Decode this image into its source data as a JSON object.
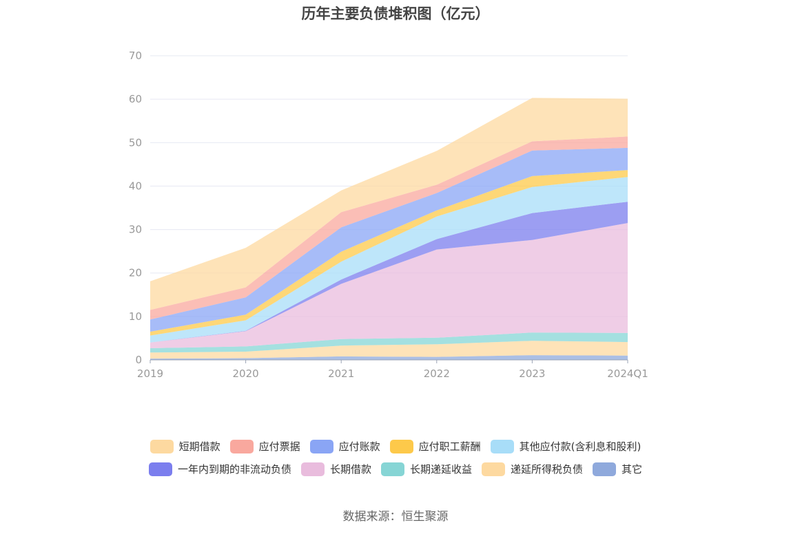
{
  "chart_data": {
    "type": "area",
    "stacked": true,
    "title": "历年主要负债堆积图（亿元）",
    "categories": [
      "2019",
      "2020",
      "2021",
      "2022",
      "2023",
      "2024Q1"
    ],
    "ylim": [
      0,
      70
    ],
    "yticks": [
      "0",
      "10",
      "20",
      "30",
      "40",
      "50",
      "60",
      "70"
    ],
    "grid": true,
    "legend_position": "bottom",
    "series": [
      {
        "name": "其它",
        "color": "#8FA9DC",
        "values": [
          0.3,
          0.4,
          0.8,
          0.7,
          1.1,
          1.0
        ]
      },
      {
        "name": "递延所得税负债",
        "color": "#FDD9A0",
        "values": [
          1.4,
          1.5,
          2.5,
          2.9,
          3.3,
          3.1
        ]
      },
      {
        "name": "长期递延收益",
        "color": "#86D5D5",
        "values": [
          1.0,
          1.2,
          1.5,
          1.5,
          1.9,
          2.1
        ]
      },
      {
        "name": "长期借款",
        "color": "#E9BCDD",
        "values": [
          1.3,
          3.5,
          12.7,
          20.3,
          21.3,
          25.3
        ]
      },
      {
        "name": "一年内到期的非流动负债",
        "color": "#7B7EEE",
        "values": [
          0.0,
          0.1,
          1.0,
          2.4,
          6.2,
          4.9
        ]
      },
      {
        "name": "其他应付款(含利息和股利)",
        "color": "#A8DDF8",
        "values": [
          1.6,
          2.4,
          4.1,
          5.2,
          6.0,
          5.7
        ]
      },
      {
        "name": "应付职工薪酬",
        "color": "#FDC94A",
        "values": [
          0.9,
          1.3,
          2.3,
          1.4,
          2.5,
          1.6
        ]
      },
      {
        "name": "应付账款",
        "color": "#8AA5F5",
        "values": [
          2.8,
          4.0,
          5.6,
          4.0,
          5.9,
          5.1
        ]
      },
      {
        "name": "应付票据",
        "color": "#F9A89E",
        "values": [
          2.2,
          2.3,
          3.5,
          1.9,
          2.1,
          2.6
        ]
      },
      {
        "name": "短期借款",
        "color": "#FDD9A0",
        "values": [
          6.6,
          9.1,
          5.0,
          7.8,
          10.0,
          8.7
        ]
      }
    ]
  },
  "legend_rows": [
    [
      {
        "name": "短期借款",
        "color": "#FDD9A0"
      },
      {
        "name": "应付票据",
        "color": "#F9A89E"
      },
      {
        "name": "应付账款",
        "color": "#8AA5F5"
      },
      {
        "name": "应付职工薪酬",
        "color": "#FDC94A"
      },
      {
        "name": "其他应付款(含利息和股利)",
        "color": "#A8DDF8"
      }
    ],
    [
      {
        "name": "一年内到期的非流动负债",
        "color": "#7B7EEE"
      },
      {
        "name": "长期借款",
        "color": "#E9BCDD"
      },
      {
        "name": "长期递延收益",
        "color": "#86D5D5"
      },
      {
        "name": "递延所得税负债",
        "color": "#FDD9A0"
      },
      {
        "name": "其它",
        "color": "#8FA9DC"
      }
    ]
  ],
  "source": "数据来源：恒生聚源"
}
